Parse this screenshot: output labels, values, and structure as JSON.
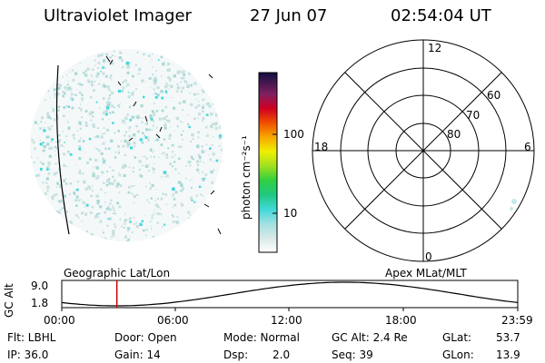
{
  "header": {
    "title": "Ultraviolet Imager",
    "date": "27 Jun 07",
    "time": "02:54:04 UT"
  },
  "colorbar": {
    "label": "photon cm⁻²s⁻¹",
    "ticks": [
      "100",
      "10"
    ]
  },
  "polar_plot": {
    "mlt_labels": {
      "top": "12",
      "left": "18",
      "right": "6",
      "bottom": "0"
    },
    "lat_labels": [
      "60",
      "70",
      "80"
    ]
  },
  "image_labels": {
    "left": "Geographic Lat/Lon",
    "right": "Apex MLat/MLT"
  },
  "altitude_strip": {
    "axis_label": "GC Alt",
    "y_ticks": [
      "9.0",
      "1.8"
    ],
    "x_ticks": [
      "00:00",
      "06:00",
      "12:00",
      "18:00",
      "23:59"
    ],
    "marker_time_hours": 2.9,
    "marker_color": "#cc0000"
  },
  "info": {
    "flt": "Flt: LBHL",
    "ip": "IP: 36.0",
    "door": "Door: Open",
    "gain": "Gain: 14",
    "mode": "Mode: Normal",
    "dsp_label": "Dsp:",
    "dsp_value": "2.0",
    "gc_alt": "GC Alt: 2.4 Re",
    "seq": "Seq: 39",
    "glat_label": "GLat:",
    "glat_value": "53.7",
    "glon_label": "GLon:",
    "glon_value": "13.9"
  },
  "colors": {
    "aurora_light": "#c8e0e0",
    "aurora_mid": "#a8d8d8",
    "aurora_cyan": "#40d8e0"
  }
}
